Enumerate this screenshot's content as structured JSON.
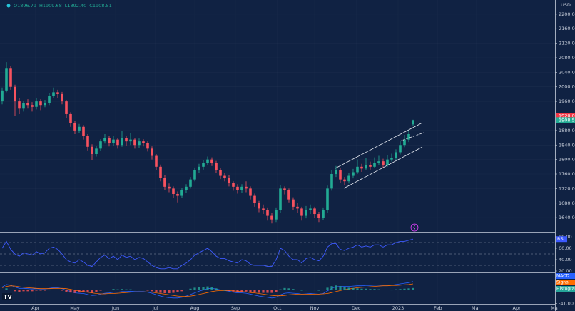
{
  "chart_data": [
    {
      "type": "candlestick",
      "header": [
        "O1896.79",
        "H1909.68",
        "L1892.40",
        "C1908.51"
      ],
      "currency": "USD",
      "up_color": "#22ab94",
      "down_color": "#f7525f",
      "candles": [
        [
          1960,
          1998,
          1952,
          1990
        ],
        [
          1990,
          2068,
          1985,
          2050
        ],
        [
          2050,
          2058,
          1992,
          2000
        ],
        [
          2000,
          2006,
          1920,
          1960
        ],
        [
          1960,
          1968,
          1925,
          1940
        ],
        [
          1940,
          1962,
          1932,
          1955
        ],
        [
          1955,
          1966,
          1940,
          1950
        ],
        [
          1950,
          1958,
          1932,
          1945
        ],
        [
          1945,
          1968,
          1938,
          1960
        ],
        [
          1960,
          1966,
          1936,
          1950
        ],
        [
          1950,
          1964,
          1944,
          1955
        ],
        [
          1955,
          1982,
          1950,
          1975
        ],
        [
          1975,
          1998,
          1968,
          1985
        ],
        [
          1985,
          1992,
          1970,
          1980
        ],
        [
          1980,
          1986,
          1952,
          1960
        ],
        [
          1960,
          1964,
          1915,
          1925
        ],
        [
          1925,
          1930,
          1890,
          1900
        ],
        [
          1900,
          1906,
          1870,
          1880
        ],
        [
          1880,
          1898,
          1872,
          1890
        ],
        [
          1890,
          1895,
          1855,
          1865
        ],
        [
          1865,
          1870,
          1825,
          1835
        ],
        [
          1835,
          1842,
          1798,
          1815
        ],
        [
          1815,
          1838,
          1808,
          1830
        ],
        [
          1830,
          1856,
          1824,
          1850
        ],
        [
          1850,
          1870,
          1844,
          1860
        ],
        [
          1860,
          1866,
          1836,
          1845
        ],
        [
          1845,
          1864,
          1838,
          1855
        ],
        [
          1855,
          1860,
          1830,
          1840
        ],
        [
          1840,
          1878,
          1835,
          1860
        ],
        [
          1860,
          1866,
          1838,
          1850
        ],
        [
          1850,
          1872,
          1840,
          1855
        ],
        [
          1855,
          1860,
          1830,
          1840
        ],
        [
          1840,
          1858,
          1832,
          1850
        ],
        [
          1850,
          1856,
          1836,
          1845
        ],
        [
          1845,
          1850,
          1822,
          1830
        ],
        [
          1830,
          1836,
          1800,
          1810
        ],
        [
          1810,
          1815,
          1770,
          1780
        ],
        [
          1780,
          1786,
          1740,
          1750
        ],
        [
          1750,
          1756,
          1715,
          1725
        ],
        [
          1725,
          1734,
          1710,
          1720
        ],
        [
          1720,
          1726,
          1695,
          1705
        ],
        [
          1705,
          1712,
          1682,
          1700
        ],
        [
          1700,
          1722,
          1694,
          1715
        ],
        [
          1715,
          1732,
          1708,
          1725
        ],
        [
          1725,
          1752,
          1720,
          1745
        ],
        [
          1745,
          1778,
          1740,
          1770
        ],
        [
          1770,
          1788,
          1762,
          1780
        ],
        [
          1780,
          1798,
          1772,
          1790
        ],
        [
          1790,
          1808,
          1784,
          1800
        ],
        [
          1800,
          1806,
          1782,
          1790
        ],
        [
          1790,
          1796,
          1762,
          1770
        ],
        [
          1770,
          1776,
          1746,
          1755
        ],
        [
          1755,
          1764,
          1740,
          1750
        ],
        [
          1750,
          1756,
          1726,
          1735
        ],
        [
          1735,
          1740,
          1714,
          1725
        ],
        [
          1725,
          1732,
          1706,
          1715
        ],
        [
          1715,
          1732,
          1708,
          1725
        ],
        [
          1725,
          1740,
          1710,
          1720
        ],
        [
          1720,
          1726,
          1690,
          1700
        ],
        [
          1700,
          1706,
          1670,
          1680
        ],
        [
          1680,
          1686,
          1655,
          1665
        ],
        [
          1665,
          1676,
          1650,
          1660
        ],
        [
          1660,
          1668,
          1632,
          1645
        ],
        [
          1645,
          1652,
          1624,
          1635
        ],
        [
          1635,
          1668,
          1628,
          1660
        ],
        [
          1660,
          1730,
          1654,
          1720
        ],
        [
          1720,
          1726,
          1704,
          1715
        ],
        [
          1715,
          1720,
          1682,
          1690
        ],
        [
          1690,
          1696,
          1660,
          1670
        ],
        [
          1670,
          1680,
          1654,
          1665
        ],
        [
          1665,
          1670,
          1632,
          1645
        ],
        [
          1645,
          1672,
          1638,
          1660
        ],
        [
          1660,
          1676,
          1650,
          1665
        ],
        [
          1665,
          1670,
          1640,
          1650
        ],
        [
          1650,
          1656,
          1628,
          1640
        ],
        [
          1640,
          1668,
          1634,
          1660
        ],
        [
          1660,
          1728,
          1654,
          1720
        ],
        [
          1720,
          1770,
          1714,
          1760
        ],
        [
          1760,
          1782,
          1752,
          1770
        ],
        [
          1770,
          1776,
          1736,
          1745
        ],
        [
          1745,
          1752,
          1730,
          1740
        ],
        [
          1740,
          1762,
          1734,
          1755
        ],
        [
          1755,
          1774,
          1748,
          1765
        ],
        [
          1765,
          1800,
          1760,
          1780
        ],
        [
          1780,
          1788,
          1766,
          1775
        ],
        [
          1775,
          1804,
          1770,
          1785
        ],
        [
          1785,
          1794,
          1772,
          1780
        ],
        [
          1780,
          1806,
          1776,
          1790
        ],
        [
          1790,
          1810,
          1784,
          1795
        ],
        [
          1795,
          1802,
          1778,
          1785
        ],
        [
          1785,
          1812,
          1780,
          1800
        ],
        [
          1800,
          1816,
          1794,
          1805
        ],
        [
          1805,
          1828,
          1798,
          1820
        ],
        [
          1820,
          1850,
          1814,
          1840
        ],
        [
          1840,
          1868,
          1834,
          1855
        ],
        [
          1855,
          1882,
          1848,
          1870
        ],
        [
          1896.79,
          1909.68,
          1892.4,
          1908.51
        ]
      ],
      "ylim": [
        1601,
        2239
      ],
      "yticks": [
        {
          "value": 1640,
          "label": "1640.00"
        },
        {
          "value": 1680,
          "label": "1680.00"
        },
        {
          "value": 1720,
          "label": "1720.00"
        },
        {
          "value": 1760,
          "label": "1760.00"
        },
        {
          "value": 1800,
          "label": "1800.00"
        },
        {
          "value": 1840,
          "label": "1840.00"
        },
        {
          "value": 1880,
          "label": "1880.00"
        },
        {
          "value": 1920,
          "label": "1920.00"
        },
        {
          "value": 1960,
          "label": "1960.00"
        },
        {
          "value": 2000,
          "label": "2000.00"
        },
        {
          "value": 2040,
          "label": "2040.00"
        },
        {
          "value": 2080,
          "label": "2080.00"
        },
        {
          "value": 2120,
          "label": "2120.00"
        },
        {
          "value": 2160,
          "label": "2160.00"
        },
        {
          "value": 2200,
          "label": "2200.00"
        }
      ],
      "hline": {
        "value": 1920,
        "label": "1920.00",
        "color": "#f23645"
      },
      "last_price": {
        "value": 1908.51,
        "label": "1908.51",
        "color": "#22ab94"
      },
      "xlim": [
        -0.5,
        129.17
      ],
      "xticks": [
        {
          "value": 7.8,
          "label": "Apr"
        },
        {
          "value": 17,
          "label": "May"
        },
        {
          "value": 26.5,
          "label": "Jun"
        },
        {
          "value": 35.8,
          "label": "Jul"
        },
        {
          "value": 45,
          "label": "Aug"
        },
        {
          "value": 54.5,
          "label": "Sep"
        },
        {
          "value": 64.3,
          "label": "Oct"
        },
        {
          "value": 73,
          "label": "Nov"
        },
        {
          "value": 82.7,
          "label": "Dec"
        },
        {
          "value": 92.5,
          "label": "2023"
        },
        {
          "value": 101.8,
          "label": "Feb"
        },
        {
          "value": 110.7,
          "label": "Mar"
        },
        {
          "value": 120.2,
          "label": "Apr"
        },
        {
          "value": 129,
          "label": "Ma"
        }
      ],
      "grid": true
    },
    {
      "type": "line",
      "series": [
        {
          "name": "RSI",
          "color": "#3d5afe",
          "values": [
            60,
            72,
            58,
            50,
            46,
            52,
            50,
            48,
            54,
            50,
            52,
            60,
            62,
            58,
            50,
            40,
            36,
            34,
            40,
            36,
            30,
            28,
            36,
            44,
            48,
            42,
            46,
            40,
            48,
            44,
            46,
            40,
            44,
            42,
            36,
            30,
            26,
            24,
            24,
            26,
            24,
            24,
            30,
            34,
            40,
            48,
            52,
            56,
            60,
            54,
            46,
            42,
            42,
            38,
            36,
            34,
            40,
            38,
            32,
            30,
            30,
            30,
            28,
            28,
            40,
            60,
            56,
            46,
            40,
            40,
            34,
            42,
            44,
            40,
            38,
            46,
            62,
            68,
            68,
            58,
            56,
            60,
            62,
            66,
            62,
            64,
            62,
            66,
            66,
            62,
            66,
            66,
            70,
            72,
            72,
            74,
            76
          ]
        }
      ],
      "levels": [
        70,
        50,
        30
      ],
      "ylim": [
        17.5,
        87.5
      ],
      "yticks": [
        {
          "value": 80,
          "label": "80.00"
        },
        {
          "value": 60,
          "label": "60.00"
        },
        {
          "value": 40,
          "label": "40.00"
        },
        {
          "value": 20,
          "label": "20.00"
        }
      ]
    },
    {
      "type": "macd",
      "series": [
        {
          "name": "MACD",
          "color": "#2962ff",
          "values": [
            10,
            18,
            16,
            10,
            6,
            6,
            5,
            4,
            5,
            4,
            4,
            6,
            8,
            8,
            5,
            0,
            -4,
            -8,
            -9,
            -10,
            -13,
            -16,
            -15,
            -12,
            -9,
            -8,
            -6,
            -6,
            -4,
            -4,
            -3,
            -4,
            -4,
            -4,
            -6,
            -9,
            -14,
            -18,
            -21,
            -23,
            -24,
            -24,
            -22,
            -18,
            -13,
            -8,
            -3,
            1,
            5,
            6,
            4,
            1,
            -1,
            -3,
            -6,
            -8,
            -8,
            -9,
            -12,
            -15,
            -18,
            -20,
            -22,
            -24,
            -22,
            -14,
            -9,
            -8,
            -9,
            -10,
            -12,
            -11,
            -10,
            -11,
            -12,
            -10,
            -2,
            6,
            11,
            12,
            12,
            12,
            13,
            14,
            14,
            15,
            15,
            16,
            16,
            16,
            16,
            16,
            18,
            20,
            22,
            24,
            27
          ]
        },
        {
          "name": "Signal",
          "color": "#ff6d00",
          "values": [
            8,
            12,
            14,
            13,
            11,
            9,
            8,
            7,
            6,
            5,
            5,
            5,
            6,
            6,
            6,
            5,
            3,
            0,
            -2,
            -4,
            -6,
            -8,
            -10,
            -11,
            -11,
            -10,
            -10,
            -9,
            -8,
            -7,
            -6,
            -5,
            -5,
            -5,
            -5,
            -6,
            -8,
            -10,
            -12,
            -14,
            -16,
            -18,
            -19,
            -19,
            -18,
            -16,
            -13,
            -10,
            -7,
            -4,
            -2,
            -1,
            -1,
            -1,
            -2,
            -3,
            -4,
            -5,
            -7,
            -8,
            -10,
            -12,
            -14,
            -16,
            -17,
            -17,
            -16,
            -14,
            -13,
            -12,
            -12,
            -12,
            -12,
            -12,
            -12,
            -11,
            -10,
            -7,
            -4,
            -1,
            2,
            4,
            6,
            8,
            9,
            10,
            11,
            12,
            13,
            14,
            14,
            15,
            15,
            16,
            17,
            18,
            20
          ]
        },
        {
          "name": "Histogram",
          "color": "#26a69a",
          "negative_color": "#ff5252",
          "values": [
            2,
            6,
            2,
            -3,
            -5,
            -3,
            -3,
            -3,
            -1,
            -1,
            -1,
            1,
            2,
            2,
            -1,
            -5,
            -7,
            -8,
            -7,
            -6,
            -7,
            -8,
            -5,
            -1,
            2,
            2,
            4,
            3,
            4,
            3,
            3,
            1,
            1,
            1,
            -1,
            -3,
            -6,
            -8,
            -9,
            -9,
            -8,
            -6,
            -3,
            1,
            5,
            8,
            10,
            11,
            12,
            10,
            6,
            2,
            0,
            -2,
            -4,
            -5,
            -4,
            -4,
            -5,
            -7,
            -8,
            -8,
            -8,
            -8,
            -5,
            3,
            7,
            6,
            4,
            2,
            0,
            1,
            2,
            1,
            0,
            1,
            8,
            13,
            15,
            13,
            10,
            8,
            7,
            6,
            5,
            5,
            4,
            4,
            3,
            2,
            2,
            1,
            3,
            4,
            5,
            6,
            7
          ]
        }
      ],
      "ylim": [
        -42.2,
        53.3
      ],
      "yticks": [
        {
          "value": 40,
          "label": "40.00"
        },
        {
          "value": 0,
          "label": "0.00"
        },
        {
          "value": -41,
          "label": "-41.00"
        }
      ]
    }
  ]
}
